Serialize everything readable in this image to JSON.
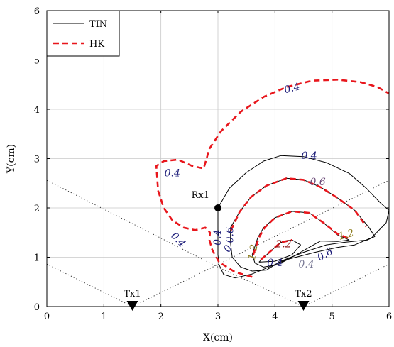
{
  "chart_data": {
    "type": "line",
    "title": "",
    "xlabel": "X(cm)",
    "ylabel": "Y(cm)",
    "xlim": [
      0,
      6
    ],
    "ylim": [
      0,
      6
    ],
    "xticks": [
      "0",
      "1",
      "2",
      "3",
      "4",
      "5",
      "6"
    ],
    "yticks": [
      "0",
      "1",
      "2",
      "3",
      "4",
      "5",
      "6"
    ],
    "grid": true,
    "legend": {
      "placement": "top-left",
      "entries": [
        "TIN",
        "HK"
      ]
    },
    "series": [
      {
        "name": "TIN",
        "style": "solid",
        "color": "#000000",
        "contours": [
          {
            "level": "0.4",
            "points": [
              [
                3.0,
                2.0
              ],
              [
                3.2,
                2.4
              ],
              [
                3.5,
                2.72
              ],
              [
                3.8,
                2.95
              ],
              [
                4.1,
                3.06
              ],
              [
                4.5,
                3.04
              ],
              [
                4.9,
                2.92
              ],
              [
                5.3,
                2.7
              ],
              [
                5.6,
                2.4
              ],
              [
                5.85,
                2.1
              ],
              [
                6.0,
                1.95
              ],
              [
                5.95,
                1.7
              ],
              [
                5.7,
                1.4
              ],
              [
                5.4,
                1.25
              ],
              [
                5.1,
                1.2
              ],
              [
                4.7,
                1.1
              ],
              [
                4.2,
                0.95
              ],
              [
                3.85,
                0.78
              ],
              [
                3.6,
                0.66
              ],
              [
                3.3,
                0.58
              ],
              [
                3.1,
                0.65
              ],
              [
                3.02,
                0.85
              ],
              [
                3.0,
                1.05
              ],
              [
                3.0,
                1.4
              ],
              [
                3.0,
                1.8
              ],
              [
                3.0,
                2.0
              ]
            ]
          },
          {
            "level": "0.6",
            "points": [
              [
                3.22,
                1.6
              ],
              [
                3.38,
                1.92
              ],
              [
                3.58,
                2.22
              ],
              [
                3.85,
                2.45
              ],
              [
                4.2,
                2.6
              ],
              [
                4.5,
                2.57
              ],
              [
                4.8,
                2.42
              ],
              [
                5.1,
                2.2
              ],
              [
                5.4,
                1.95
              ],
              [
                5.65,
                1.6
              ],
              [
                5.75,
                1.42
              ],
              [
                5.62,
                1.35
              ],
              [
                5.2,
                1.3
              ],
              [
                4.9,
                1.25
              ],
              [
                4.5,
                1.1
              ],
              [
                4.1,
                0.92
              ],
              [
                3.85,
                0.74
              ],
              [
                3.6,
                0.72
              ],
              [
                3.4,
                0.8
              ],
              [
                3.25,
                1.0
              ],
              [
                3.22,
                1.3
              ],
              [
                3.22,
                1.6
              ]
            ]
          },
          {
            "level": "1.2",
            "points": [
              [
                3.6,
                1.05
              ],
              [
                3.7,
                1.4
              ],
              [
                3.8,
                1.6
              ],
              [
                4.0,
                1.8
              ],
              [
                4.3,
                1.93
              ],
              [
                4.6,
                1.9
              ],
              [
                4.85,
                1.7
              ],
              [
                5.1,
                1.45
              ],
              [
                5.3,
                1.35
              ],
              [
                5.1,
                1.32
              ],
              [
                4.8,
                1.33
              ],
              [
                4.6,
                1.2
              ],
              [
                4.3,
                1.0
              ],
              [
                4.05,
                0.85
              ],
              [
                3.8,
                0.8
              ],
              [
                3.65,
                0.88
              ],
              [
                3.6,
                1.05
              ]
            ]
          },
          {
            "level": "2.2",
            "points": [
              [
                3.72,
                0.9
              ],
              [
                3.9,
                1.1
              ],
              [
                4.1,
                1.3
              ],
              [
                4.3,
                1.35
              ],
              [
                4.45,
                1.25
              ],
              [
                4.3,
                1.05
              ],
              [
                4.0,
                0.92
              ],
              [
                3.72,
                0.9
              ]
            ]
          }
        ]
      },
      {
        "name": "HK",
        "style": "dashed",
        "color": "#e8161c",
        "contours": [
          {
            "level": "0.4",
            "points": [
              [
                3.6,
                0.6
              ],
              [
                3.3,
                0.7
              ],
              [
                3.02,
                0.9
              ],
              [
                2.9,
                1.15
              ],
              [
                2.85,
                1.35
              ],
              [
                2.86,
                1.5
              ],
              [
                2.78,
                1.6
              ],
              [
                2.6,
                1.55
              ],
              [
                2.4,
                1.6
              ],
              [
                2.2,
                1.75
              ],
              [
                2.05,
                2.0
              ],
              [
                1.95,
                2.35
              ],
              [
                1.92,
                2.85
              ],
              [
                2.05,
                2.95
              ],
              [
                2.3,
                2.98
              ],
              [
                2.55,
                2.85
              ],
              [
                2.75,
                2.8
              ],
              [
                2.85,
                3.2
              ],
              [
                3.05,
                3.55
              ],
              [
                3.4,
                3.95
              ],
              [
                3.8,
                4.25
              ],
              [
                4.2,
                4.45
              ],
              [
                4.65,
                4.58
              ],
              [
                5.1,
                4.6
              ],
              [
                5.5,
                4.55
              ],
              [
                5.8,
                4.45
              ],
              [
                6.0,
                4.32
              ]
            ]
          },
          {
            "level": "0.6",
            "points": [
              [
                3.23,
                1.55
              ],
              [
                3.38,
                1.92
              ],
              [
                3.58,
                2.22
              ],
              [
                3.85,
                2.45
              ],
              [
                4.2,
                2.6
              ],
              [
                4.5,
                2.57
              ],
              [
                4.8,
                2.42
              ],
              [
                5.1,
                2.2
              ],
              [
                5.4,
                1.95
              ],
              [
                5.6,
                1.62
              ]
            ]
          },
          {
            "level": "1.2",
            "points": [
              [
                3.62,
                1.05
              ],
              [
                3.72,
                1.4
              ],
              [
                3.82,
                1.6
              ],
              [
                4.0,
                1.8
              ],
              [
                4.3,
                1.93
              ],
              [
                4.6,
                1.9
              ],
              [
                4.85,
                1.7
              ],
              [
                5.1,
                1.47
              ],
              [
                5.3,
                1.38
              ]
            ]
          },
          {
            "level": "2.2",
            "points": [
              [
                3.75,
                0.95
              ],
              [
                3.9,
                1.1
              ],
              [
                4.1,
                1.3
              ],
              [
                4.3,
                1.35
              ]
            ]
          }
        ]
      }
    ],
    "contour_labels": [
      {
        "text": "0.4",
        "x": 4.6,
        "y": 3.05,
        "color": "#1e1e7a",
        "angle": 0
      },
      {
        "text": "0.6",
        "x": 4.75,
        "y": 2.52,
        "color": "#6b4a78",
        "angle": 0
      },
      {
        "text": "0.4",
        "x": 4.3,
        "y": 4.42,
        "color": "#1e1e7a",
        "angle": -15
      },
      {
        "text": "0.4",
        "x": 2.2,
        "y": 2.7,
        "color": "#1e1e7a",
        "angle": 0
      },
      {
        "text": "0.4",
        "x": 2.3,
        "y": 1.35,
        "color": "#1e1e7a",
        "angle": 45
      },
      {
        "text": "0.4",
        "x": 3.0,
        "y": 1.4,
        "color": "#1e1e7a",
        "angle": -90
      },
      {
        "text": "0.6",
        "x": 3.22,
        "y": 1.45,
        "color": "#1e1e7a",
        "angle": -90
      },
      {
        "text": "0",
        "x": 3.18,
        "y": 1.17,
        "color": "#1e1e7a",
        "angle": -60
      },
      {
        "text": "1.2",
        "x": 3.62,
        "y": 1.1,
        "color": "#8b7a1a",
        "angle": -80
      },
      {
        "text": "1.2",
        "x": 5.25,
        "y": 1.45,
        "color": "#8b7a1a",
        "angle": -15
      },
      {
        "text": "2.2",
        "x": 4.15,
        "y": 1.26,
        "color": "#8b1a1a",
        "angle": 0
      },
      {
        "text": "0.4",
        "x": 4.0,
        "y": 0.88,
        "color": "#1e1e7a",
        "angle": 0
      },
      {
        "text": "0.4",
        "x": 4.55,
        "y": 0.85,
        "color": "#7a7a96",
        "angle": 0
      },
      {
        "text": "0.6",
        "x": 4.88,
        "y": 1.05,
        "color": "#1e1e7a",
        "angle": -30
      }
    ],
    "dotted_lines": [
      {
        "points": [
          [
            0.0,
            2.56
          ],
          [
            3.0,
            0.8
          ],
          [
            4.5,
            0.0
          ]
        ]
      },
      {
        "points": [
          [
            0.0,
            0.86
          ],
          [
            1.5,
            0.0
          ]
        ]
      },
      {
        "points": [
          [
            1.5,
            0.0
          ],
          [
            6.0,
            2.56
          ]
        ]
      },
      {
        "points": [
          [
            4.5,
            0.0
          ],
          [
            6.0,
            0.86
          ]
        ]
      }
    ],
    "markers": [
      {
        "label": "Rx1",
        "x": 3.0,
        "y": 2.0,
        "shape": "circle"
      },
      {
        "label": "Tx1",
        "x": 1.5,
        "y": 0.0,
        "shape": "triangle-down"
      },
      {
        "label": "Tx2",
        "x": 4.5,
        "y": 0.0,
        "shape": "triangle-down"
      }
    ]
  }
}
